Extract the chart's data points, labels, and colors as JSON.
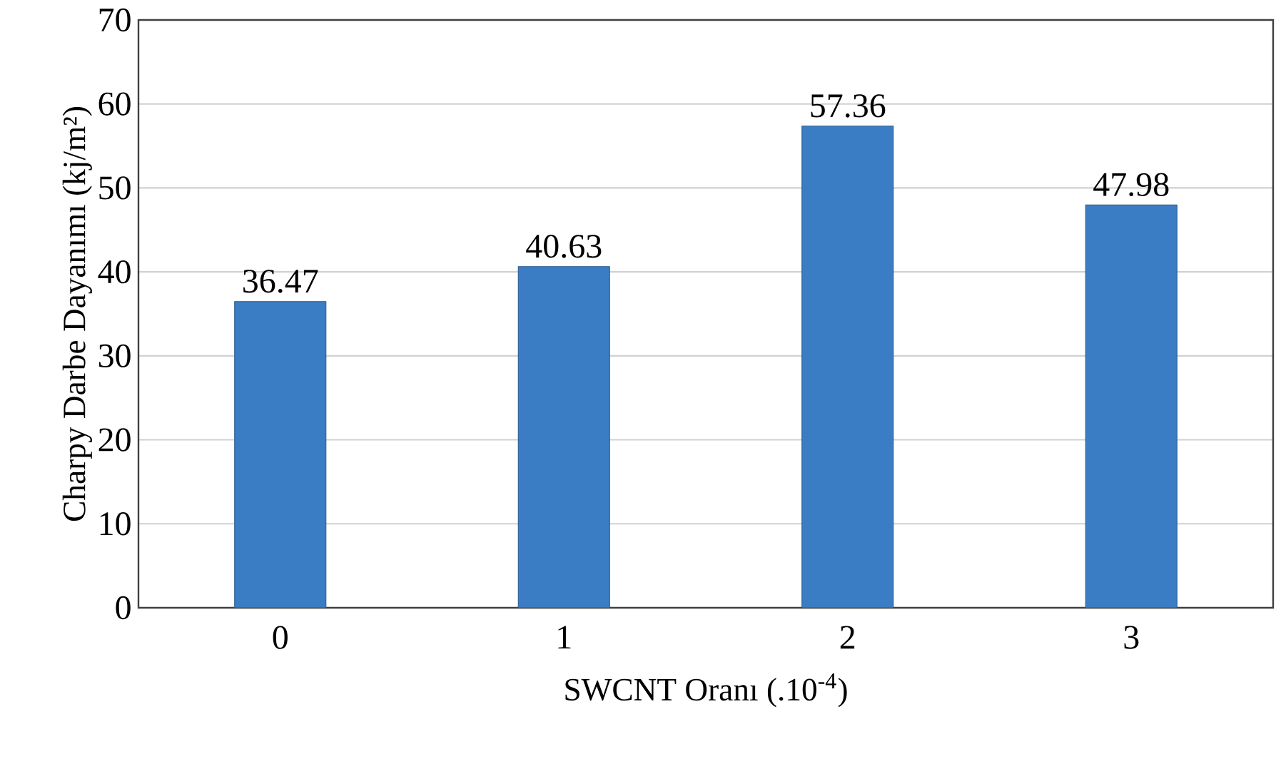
{
  "chart_data": {
    "type": "bar",
    "xlabel": "SWCNT Oranı (.10$^{-4}$)",
    "ylabel": "Charpy Darbe Dayanımı (kj/m²)",
    "categories": [
      "0",
      "1",
      "2",
      "3"
    ],
    "values": [
      36.47,
      40.63,
      57.36,
      47.98
    ],
    "color": "#3b7dc4",
    "ylim": [
      0,
      70
    ],
    "yticks": [
      0,
      10,
      20,
      30,
      40,
      50,
      60,
      70
    ],
    "grid": "y",
    "data_labels": true
  }
}
